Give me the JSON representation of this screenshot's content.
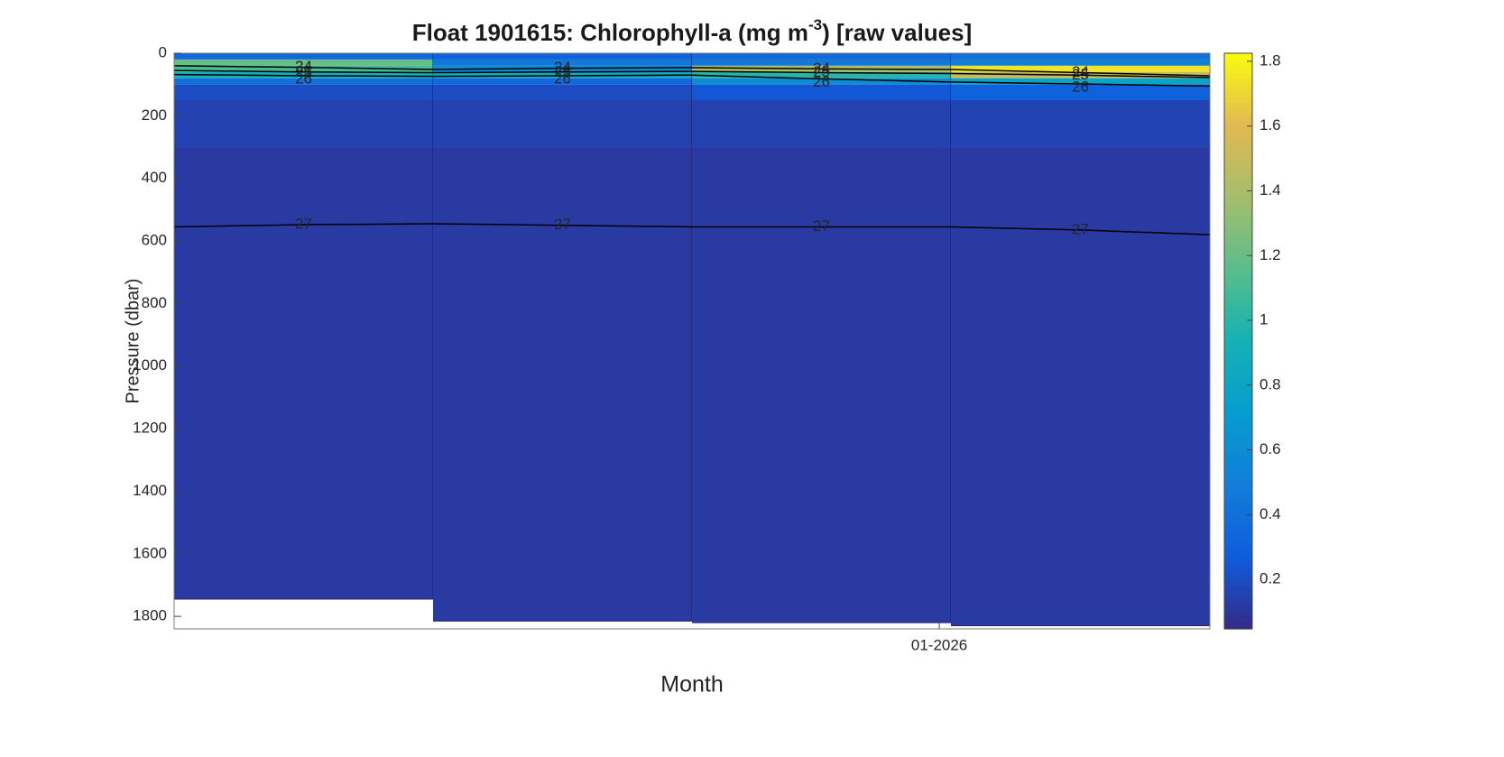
{
  "chart_data": {
    "type": "heatmap",
    "title_parts": [
      "Float  1901615:  Chlorophyll-a  (mg  m",
      "-3",
      ")  [raw  values]"
    ],
    "xlabel": "Month",
    "ylabel": "Pressure (dbar)",
    "xlim": [
      0,
      4
    ],
    "xticks": [
      {
        "value": 2.955,
        "label": "01-2026"
      }
    ],
    "ylim": [
      0,
      1840
    ],
    "y_reversed": true,
    "yticks": [
      0,
      200,
      400,
      600,
      800,
      1000,
      1200,
      1400,
      1600,
      1800
    ],
    "profile_edges": [
      0,
      1,
      2,
      3,
      4
    ],
    "pressure_edges": [
      0,
      20,
      40,
      60,
      80,
      100,
      150,
      300
    ],
    "max_pressure": [
      1745,
      1815,
      1820,
      1830
    ],
    "values": [
      [
        0.35,
        1.2,
        1.1,
        0.9,
        0.4,
        0.2,
        0.15,
        0.12
      ],
      [
        0.3,
        0.45,
        0.6,
        0.85,
        0.35,
        0.2,
        0.15,
        0.12
      ],
      [
        0.35,
        0.45,
        1.4,
        1.0,
        0.6,
        0.25,
        0.15,
        0.12
      ],
      [
        0.4,
        0.5,
        1.75,
        1.5,
        0.8,
        0.3,
        0.16,
        0.12
      ]
    ],
    "colorbar": {
      "clim": [
        0.047,
        1.825
      ],
      "ticks": [
        0.2,
        0.4,
        0.6,
        0.8,
        1,
        1.2,
        1.4,
        1.6,
        1.8
      ]
    },
    "contours": {
      "color": "#000000",
      "x": [
        0,
        0.5,
        1,
        1.5,
        2,
        2.5,
        3,
        3.5,
        4
      ],
      "lines": [
        {
          "level": 24,
          "pressure": [
            40,
            45,
            52,
            48,
            46,
            50,
            52,
            62,
            72
          ]
        },
        {
          "level": 25,
          "pressure": [
            55,
            60,
            62,
            60,
            58,
            62,
            65,
            70,
            78
          ]
        },
        {
          "level": 26,
          "pressure": [
            68,
            72,
            74,
            72,
            70,
            82,
            92,
            98,
            105
          ]
        },
        {
          "level": 27,
          "pressure": [
            555,
            548,
            545,
            550,
            555,
            555,
            555,
            565,
            580
          ]
        }
      ]
    }
  }
}
